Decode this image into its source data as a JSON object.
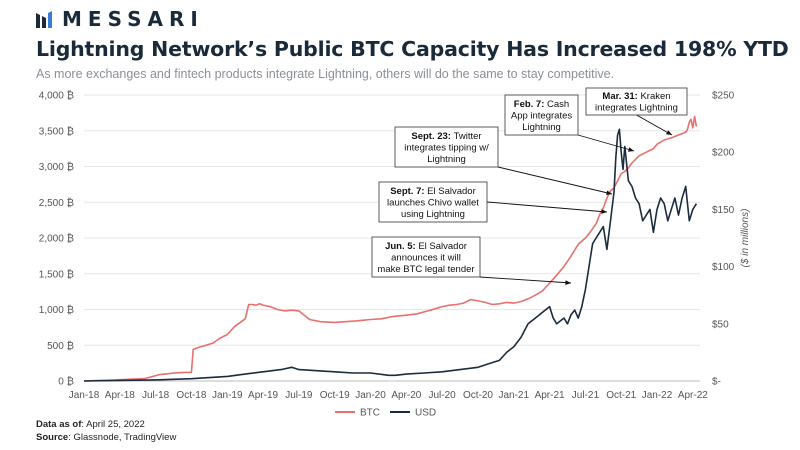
{
  "logo_text": "MESSARI",
  "title": "Lightning Network’s Public BTC Capacity Has Increased 198% YTD",
  "subtitle": "As more exchanges and fintech products integrate Lightning, others will do the same to stay competitive.",
  "footer": {
    "data_label": "Data as of",
    "data_value": ": April 25, 2022",
    "source_label": "Source",
    "source_value": ": Glassnode, TradingView"
  },
  "colors": {
    "btc": "#e8706d",
    "usd": "#1c2b3d",
    "grid": "#e6e6e6"
  },
  "chart_data": {
    "type": "line",
    "title": "Lightning Network’s Public BTC Capacity Has Increased 198% YTD",
    "x_tick_labels": [
      "Jan-18",
      "Apr-18",
      "Jul-18",
      "Oct-18",
      "Jan-19",
      "Apr-19",
      "Jul-19",
      "Oct-19",
      "Jan-20",
      "Apr-20",
      "Jul-20",
      "Oct-20",
      "Jan-21",
      "Apr-21",
      "Jul-21",
      "Oct-21",
      "Jan-22",
      "Apr-22"
    ],
    "xlim": [
      0,
      17.2
    ],
    "y_left": {
      "label": "",
      "ylim": [
        0,
        4000
      ],
      "ticks": [
        0,
        500,
        1000,
        1500,
        2000,
        2500,
        3000,
        3500,
        4000
      ],
      "tick_labels": [
        "0 ₿",
        "500 ₿",
        "1,000 ₿",
        "1,500 ₿",
        "2,000 ₿",
        "2,500 ₿",
        "3,000 ₿",
        "3,500 ₿",
        "4,000 ₿"
      ]
    },
    "y_right": {
      "label": "($ in millions)",
      "ylim": [
        0,
        250
      ],
      "ticks": [
        0,
        50,
        100,
        150,
        200,
        250
      ],
      "tick_labels": [
        "$-",
        "$50",
        "$100",
        "$150",
        "$200",
        "$250"
      ]
    },
    "legend": [
      "BTC",
      "USD"
    ],
    "series": [
      {
        "name": "BTC",
        "axis": "left",
        "x": [
          0,
          0.3,
          0.6,
          0.9,
          1.1,
          1.3,
          1.5,
          1.7,
          1.9,
          2.1,
          2.3,
          2.4,
          2.5,
          2.6,
          2.8,
          3.0,
          3.05,
          3.2,
          3.4,
          3.6,
          3.8,
          4.0,
          4.2,
          4.5,
          4.6,
          4.7,
          4.8,
          4.9,
          5.0,
          5.1,
          5.2,
          5.4,
          5.6,
          5.8,
          6.0,
          6.3,
          6.6,
          7.0,
          7.3,
          7.6,
          8.0,
          8.3,
          8.6,
          9.0,
          9.3,
          9.6,
          9.8,
          10.0,
          10.2,
          10.4,
          10.6,
          10.8,
          11.0,
          11.2,
          11.4,
          11.6,
          11.8,
          12.0,
          12.2,
          12.4,
          12.6,
          12.8,
          13.0,
          13.2,
          13.4,
          13.6,
          13.8,
          14.0,
          14.1,
          14.2,
          14.3,
          14.4,
          14.5,
          14.6,
          14.7,
          14.8,
          14.9,
          15.0,
          15.1,
          15.2,
          15.3,
          15.5,
          15.7,
          15.9,
          16.0,
          16.2,
          16.4,
          16.6,
          16.7,
          16.8,
          16.85,
          16.9,
          16.95,
          17.0,
          17.05,
          17.1
        ],
        "values": [
          0,
          5,
          10,
          15,
          20,
          25,
          30,
          35,
          60,
          90,
          100,
          105,
          110,
          115,
          120,
          120,
          440,
          470,
          500,
          530,
          600,
          650,
          760,
          870,
          1070,
          1070,
          1060,
          1080,
          1060,
          1050,
          1040,
          1000,
          980,
          990,
          980,
          860,
          830,
          820,
          830,
          840,
          860,
          870,
          900,
          920,
          940,
          980,
          1010,
          1040,
          1060,
          1070,
          1090,
          1140,
          1120,
          1100,
          1070,
          1080,
          1100,
          1090,
          1110,
          1150,
          1200,
          1260,
          1370,
          1480,
          1600,
          1750,
          1910,
          2000,
          2060,
          2130,
          2200,
          2330,
          2420,
          2560,
          2660,
          2700,
          2800,
          2900,
          2930,
          2980,
          3050,
          3150,
          3200,
          3250,
          3310,
          3370,
          3400,
          3440,
          3460,
          3480,
          3520,
          3620,
          3660,
          3540,
          3700,
          3560
        ]
      },
      {
        "name": "USD",
        "axis": "right",
        "x": [
          0,
          1.0,
          2.0,
          3.0,
          3.5,
          4.0,
          4.5,
          5.0,
          5.5,
          5.8,
          6.0,
          6.5,
          7.0,
          7.5,
          8.0,
          8.5,
          8.7,
          9.0,
          9.5,
          10.0,
          10.5,
          11.0,
          11.3,
          11.6,
          11.8,
          12.0,
          12.2,
          12.4,
          12.6,
          12.8,
          13.0,
          13.1,
          13.2,
          13.4,
          13.5,
          13.6,
          13.7,
          13.8,
          13.9,
          14.0,
          14.1,
          14.2,
          14.3,
          14.4,
          14.5,
          14.6,
          14.7,
          14.8,
          14.85,
          14.9,
          14.95,
          15.0,
          15.05,
          15.1,
          15.2,
          15.3,
          15.4,
          15.5,
          15.6,
          15.7,
          15.8,
          15.9,
          16.0,
          16.1,
          16.2,
          16.3,
          16.4,
          16.5,
          16.6,
          16.7,
          16.8,
          16.9,
          17.0,
          17.1
        ],
        "values": [
          0,
          0.5,
          1,
          2,
          3,
          4,
          6,
          8,
          10,
          12,
          10,
          9,
          8,
          7,
          7,
          5,
          5,
          6,
          7,
          8,
          10,
          12,
          15,
          18,
          25,
          30,
          38,
          50,
          55,
          60,
          65,
          55,
          50,
          55,
          50,
          58,
          62,
          55,
          65,
          80,
          100,
          120,
          125,
          130,
          135,
          115,
          140,
          165,
          195,
          215,
          220,
          200,
          185,
          205,
          175,
          170,
          160,
          155,
          140,
          145,
          150,
          130,
          150,
          160,
          155,
          140,
          150,
          160,
          145,
          160,
          170,
          140,
          150,
          155
        ]
      }
    ],
    "annotations": [
      {
        "bold": "Jun. 5:",
        "lines": [
          "El Salvador",
          "announces it will",
          "make BTC legal tender"
        ]
      },
      {
        "bold": "Sept. 7:",
        "lines": [
          "El Salvador",
          "launches Chivo wallet",
          "using Lightning"
        ]
      },
      {
        "bold": "Sept. 23:",
        "lines": [
          "Twitter",
          "integrates tipping w/",
          "Lightning"
        ]
      },
      {
        "bold": "Feb. 7:",
        "lines": [
          "Cash",
          "App integrates",
          "Lightning"
        ]
      },
      {
        "bold": "Mar. 31:",
        "lines": [
          "Kraken",
          "integrates Lightning"
        ]
      }
    ]
  }
}
